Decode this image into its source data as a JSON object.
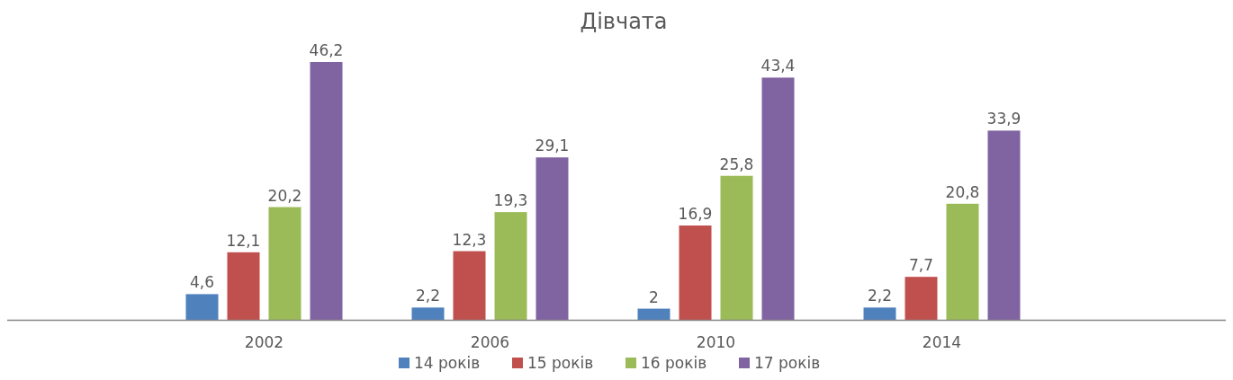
{
  "chart_data": {
    "type": "bar",
    "title": "Дівчата",
    "categories": [
      "2002",
      "2006",
      "2010",
      "2014"
    ],
    "series": [
      {
        "name": "14 років",
        "color": "#4f81bd",
        "values": [
          4.6,
          2.2,
          2,
          2.2
        ],
        "value_labels": [
          "4,6",
          "2,2",
          "2",
          "2,2"
        ]
      },
      {
        "name": "15 років",
        "color": "#c0504d",
        "values": [
          12.1,
          12.3,
          16.9,
          7.7
        ],
        "value_labels": [
          "12,1",
          "12,3",
          "16,9",
          "7,7"
        ]
      },
      {
        "name": "16 років",
        "color": "#9bbb59",
        "values": [
          20.2,
          19.3,
          25.8,
          20.8
        ],
        "value_labels": [
          "20,2",
          "19,3",
          "25,8",
          "20,8"
        ]
      },
      {
        "name": "17 років",
        "color": "#8064a2",
        "values": [
          46.2,
          29.1,
          43.4,
          33.9
        ],
        "value_labels": [
          "46,2",
          "29,1",
          "43,4",
          "33,9"
        ]
      }
    ],
    "legend": "bottom"
  }
}
